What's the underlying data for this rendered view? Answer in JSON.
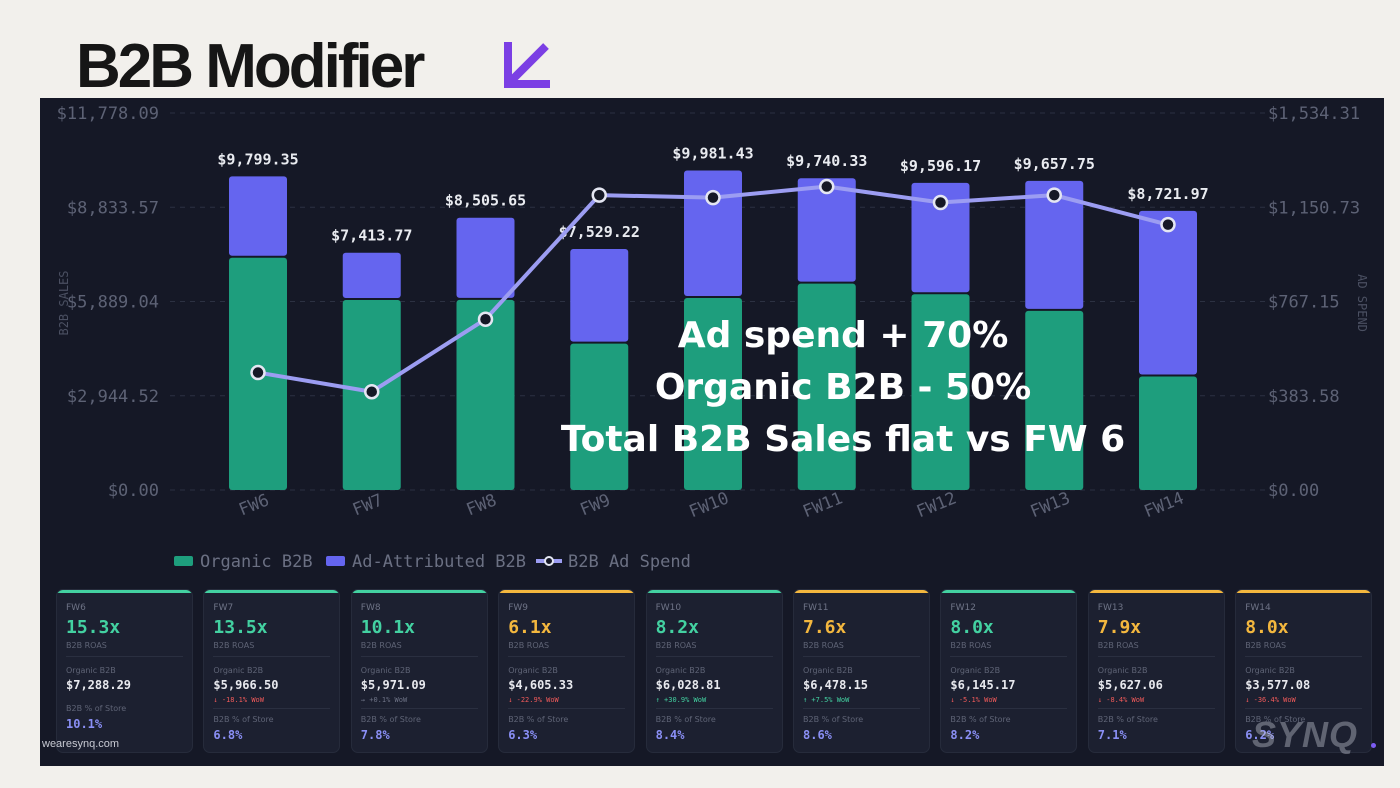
{
  "header": {
    "title": "B2B Modifier"
  },
  "overlay": {
    "line1": "Ad spend + 70%",
    "line2": "Organic B2B - 50%",
    "line3": "Total B2B Sales flat vs FW 6"
  },
  "footer": {
    "site": "wearesynq.com",
    "brand": "SYNQ"
  },
  "colors": {
    "organic": "#1e9e7d",
    "ad_attributed": "#6565ef",
    "ad_spend": "#9c9df2",
    "good": "#43d1a1",
    "warn": "#f3b73e",
    "negative": "#f05a5a",
    "accent_logo": "#7b3fe4"
  },
  "chart_data": {
    "type": "bar",
    "stacked": true,
    "categories": [
      "FW6",
      "FW7",
      "FW8",
      "FW9",
      "FW10",
      "FW11",
      "FW12",
      "FW13",
      "FW14"
    ],
    "series": [
      {
        "name": "Organic B2B",
        "values": [
          7288.29,
          5966.5,
          5971.09,
          4605.33,
          6028.81,
          6478.15,
          6145.17,
          5627.06,
          3577.08
        ]
      },
      {
        "name": "Ad-Attributed B2B",
        "values": [
          2511.06,
          1447.27,
          2534.56,
          2923.89,
          3952.62,
          3262.18,
          3451.0,
          4030.69,
          5144.89
        ]
      },
      {
        "name": "B2B Ad Spend",
        "type": "line",
        "axis": "right",
        "values": [
          478,
          400,
          695,
          1200,
          1190,
          1235,
          1170,
          1200,
          1080
        ]
      }
    ],
    "totals": [
      "$9,799.35",
      "$7,413.77",
      "$8,505.65",
      "$7,529.22",
      "$9,981.43",
      "$9,740.33",
      "$9,596.17",
      "$9,657.75",
      "$8,721.97"
    ],
    "left_axis": {
      "label": "B2B SALES",
      "ylim": [
        0,
        11778.09
      ],
      "ticks": [
        "$11,778.09",
        "$8,833.57",
        "$5,889.04",
        "$2,944.52",
        "$0.00"
      ]
    },
    "right_axis": {
      "label": "AD SPEND",
      "ylim": [
        0,
        1534.31
      ],
      "ticks": [
        "$1,534.31",
        "$1,150.73",
        "$767.15",
        "$383.58",
        "$0.00"
      ]
    },
    "legend": [
      "Organic B2B",
      "Ad-Attributed B2B",
      "B2B Ad Spend"
    ],
    "legend_position": "bottom-left",
    "grid": true
  },
  "cards": [
    {
      "week": "FW6",
      "roas": "15.3x",
      "roas_label": "B2B ROAS",
      "roas_status": "good",
      "organic_label": "Organic B2B",
      "organic": "$7,288.29",
      "change": "",
      "change_dir": "none",
      "store_label": "B2B % of Store",
      "store_pct": "10.1%"
    },
    {
      "week": "FW7",
      "roas": "13.5x",
      "roas_label": "B2B ROAS",
      "roas_status": "good",
      "organic_label": "Organic B2B",
      "organic": "$5,966.50",
      "change": "↓ -18.1% WoW",
      "change_dir": "down",
      "store_label": "B2B % of Store",
      "store_pct": "6.8%"
    },
    {
      "week": "FW8",
      "roas": "10.1x",
      "roas_label": "B2B ROAS",
      "roas_status": "good",
      "organic_label": "Organic B2B",
      "organic": "$5,971.09",
      "change": "→ +0.1% WoW",
      "change_dir": "flat",
      "store_label": "B2B % of Store",
      "store_pct": "7.8%"
    },
    {
      "week": "FW9",
      "roas": "6.1x",
      "roas_label": "B2B ROAS",
      "roas_status": "warn",
      "organic_label": "Organic B2B",
      "organic": "$4,605.33",
      "change": "↓ -22.9% WoW",
      "change_dir": "down",
      "store_label": "B2B % of Store",
      "store_pct": "6.3%"
    },
    {
      "week": "FW10",
      "roas": "8.2x",
      "roas_label": "B2B ROAS",
      "roas_status": "good",
      "organic_label": "Organic B2B",
      "organic": "$6,028.81",
      "change": "↑ +30.9% WoW",
      "change_dir": "up",
      "store_label": "B2B % of Store",
      "store_pct": "8.4%"
    },
    {
      "week": "FW11",
      "roas": "7.6x",
      "roas_label": "B2B ROAS",
      "roas_status": "warn",
      "organic_label": "Organic B2B",
      "organic": "$6,478.15",
      "change": "↑ +7.5% WoW",
      "change_dir": "up",
      "store_label": "B2B % of Store",
      "store_pct": "8.6%"
    },
    {
      "week": "FW12",
      "roas": "8.0x",
      "roas_label": "B2B ROAS",
      "roas_status": "good",
      "organic_label": "Organic B2B",
      "organic": "$6,145.17",
      "change": "↓ -5.1% WoW",
      "change_dir": "down",
      "store_label": "B2B % of Store",
      "store_pct": "8.2%"
    },
    {
      "week": "FW13",
      "roas": "7.9x",
      "roas_label": "B2B ROAS",
      "roas_status": "warn",
      "organic_label": "Organic B2B",
      "organic": "$5,627.06",
      "change": "↓ -8.4% WoW",
      "change_dir": "down",
      "store_label": "B2B % of Store",
      "store_pct": "7.1%"
    },
    {
      "week": "FW14",
      "roas": "8.0x",
      "roas_label": "B2B ROAS",
      "roas_status": "warn",
      "organic_label": "Organic B2B",
      "organic": "$3,577.08",
      "change": "↓ -36.4% WoW",
      "change_dir": "down",
      "store_label": "B2B % of Store",
      "store_pct": "6.2%"
    }
  ]
}
